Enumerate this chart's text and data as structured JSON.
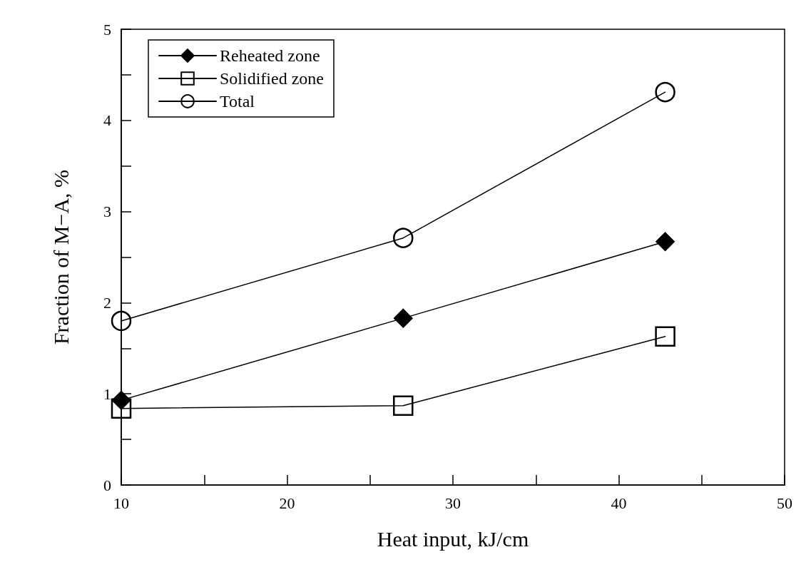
{
  "chart_data": {
    "type": "line",
    "xlabel": "Heat input, kJ/cm",
    "ylabel": "Fraction of M−A, %",
    "x": [
      10,
      27,
      42.8
    ],
    "series": [
      {
        "name": "Reheated zone",
        "color": "#000000",
        "marker": "diamond",
        "values": [
          0.93,
          1.83,
          2.67
        ]
      },
      {
        "name": "Solidified zone",
        "color": "#000000",
        "marker": "square",
        "values": [
          0.84,
          0.87,
          1.63
        ]
      },
      {
        "name": "Total",
        "color": "#000000",
        "marker": "circle",
        "values": [
          1.8,
          2.71,
          4.31
        ]
      }
    ],
    "xlim": [
      10,
      50
    ],
    "xticks": [
      10,
      {
        "value": 15,
        "label": null
      },
      20,
      {
        "value": 25,
        "label": null
      },
      30,
      {
        "value": 35,
        "label": null
      },
      40,
      {
        "value": 45,
        "label": null
      },
      50
    ],
    "ylim": [
      0,
      5
    ],
    "yticks": [
      0,
      {
        "value": 0.5,
        "label": null
      },
      1,
      {
        "value": 1.5,
        "label": null
      },
      2,
      {
        "value": 2.5,
        "label": null
      },
      3,
      {
        "value": 3.5,
        "label": null
      },
      4,
      {
        "value": 4.5,
        "label": null
      },
      5
    ],
    "grid": false,
    "legend": "top left",
    "line_style": "solid"
  }
}
